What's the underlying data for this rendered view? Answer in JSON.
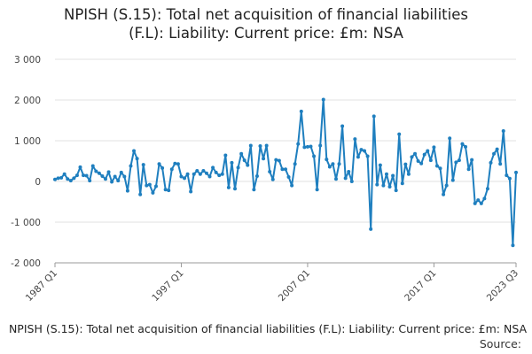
{
  "chart_data": {
    "type": "line",
    "title_lines": [
      "NPISH (S.15): Total net acquisition of financial liabilities",
      "(F.L): Liability: Current price: £m: NSA"
    ],
    "footer_series_label": "NPISH (S.15): Total net acquisition of financial liabilities (F.L): Liability: Current price: £m: NSA",
    "source_label": "Source:",
    "xlabel": "",
    "ylabel": "",
    "ylim": [
      -2000,
      3000
    ],
    "yticks": [
      -2000,
      -1000,
      0,
      1000,
      2000,
      3000
    ],
    "ytick_labels": [
      "-2 000",
      "-1 000",
      "0",
      "1 000",
      "2 000",
      "3 000"
    ],
    "xtick_labels": [
      "1987 Q1",
      "1997 Q1",
      "2007 Q1",
      "2017 Q1",
      "2023 Q3"
    ],
    "xtick_periods": [
      "1987 Q1",
      "1997 Q1",
      "2007 Q1",
      "2017 Q1",
      "2023 Q3"
    ],
    "grid": "horizontal",
    "line_color": "#1f7fbf",
    "start_period": "1987 Q1",
    "series": [
      {
        "name": "",
        "values": [
          50,
          80,
          90,
          180,
          60,
          20,
          80,
          150,
          350,
          150,
          140,
          20,
          380,
          250,
          200,
          130,
          60,
          230,
          -10,
          120,
          20,
          220,
          120,
          -230,
          380,
          750,
          560,
          -320,
          410,
          -100,
          -80,
          -280,
          -120,
          430,
          330,
          -200,
          -220,
          300,
          440,
          430,
          120,
          80,
          180,
          -250,
          180,
          260,
          180,
          260,
          200,
          120,
          340,
          220,
          150,
          180,
          640,
          -150,
          460,
          -180,
          340,
          680,
          520,
          400,
          880,
          -200,
          130,
          870,
          560,
          880,
          240,
          50,
          530,
          510,
          300,
          300,
          110,
          -100,
          430,
          920,
          1720,
          840,
          850,
          860,
          620,
          -200,
          880,
          2010,
          540,
          360,
          430,
          60,
          430,
          1360,
          80,
          240,
          0,
          1040,
          600,
          780,
          750,
          620,
          -1170,
          1600,
          -80,
          400,
          -100,
          180,
          -130,
          140,
          -220,
          1160,
          -50,
          420,
          180,
          600,
          680,
          500,
          440,
          660,
          750,
          520,
          840,
          380,
          320,
          -320,
          -100,
          1060,
          30,
          470,
          520,
          920,
          850,
          300,
          530,
          -540,
          -460,
          -540,
          -420,
          -180,
          460,
          680,
          790,
          430,
          1240,
          150,
          70,
          -1570,
          220
        ]
      }
    ]
  }
}
